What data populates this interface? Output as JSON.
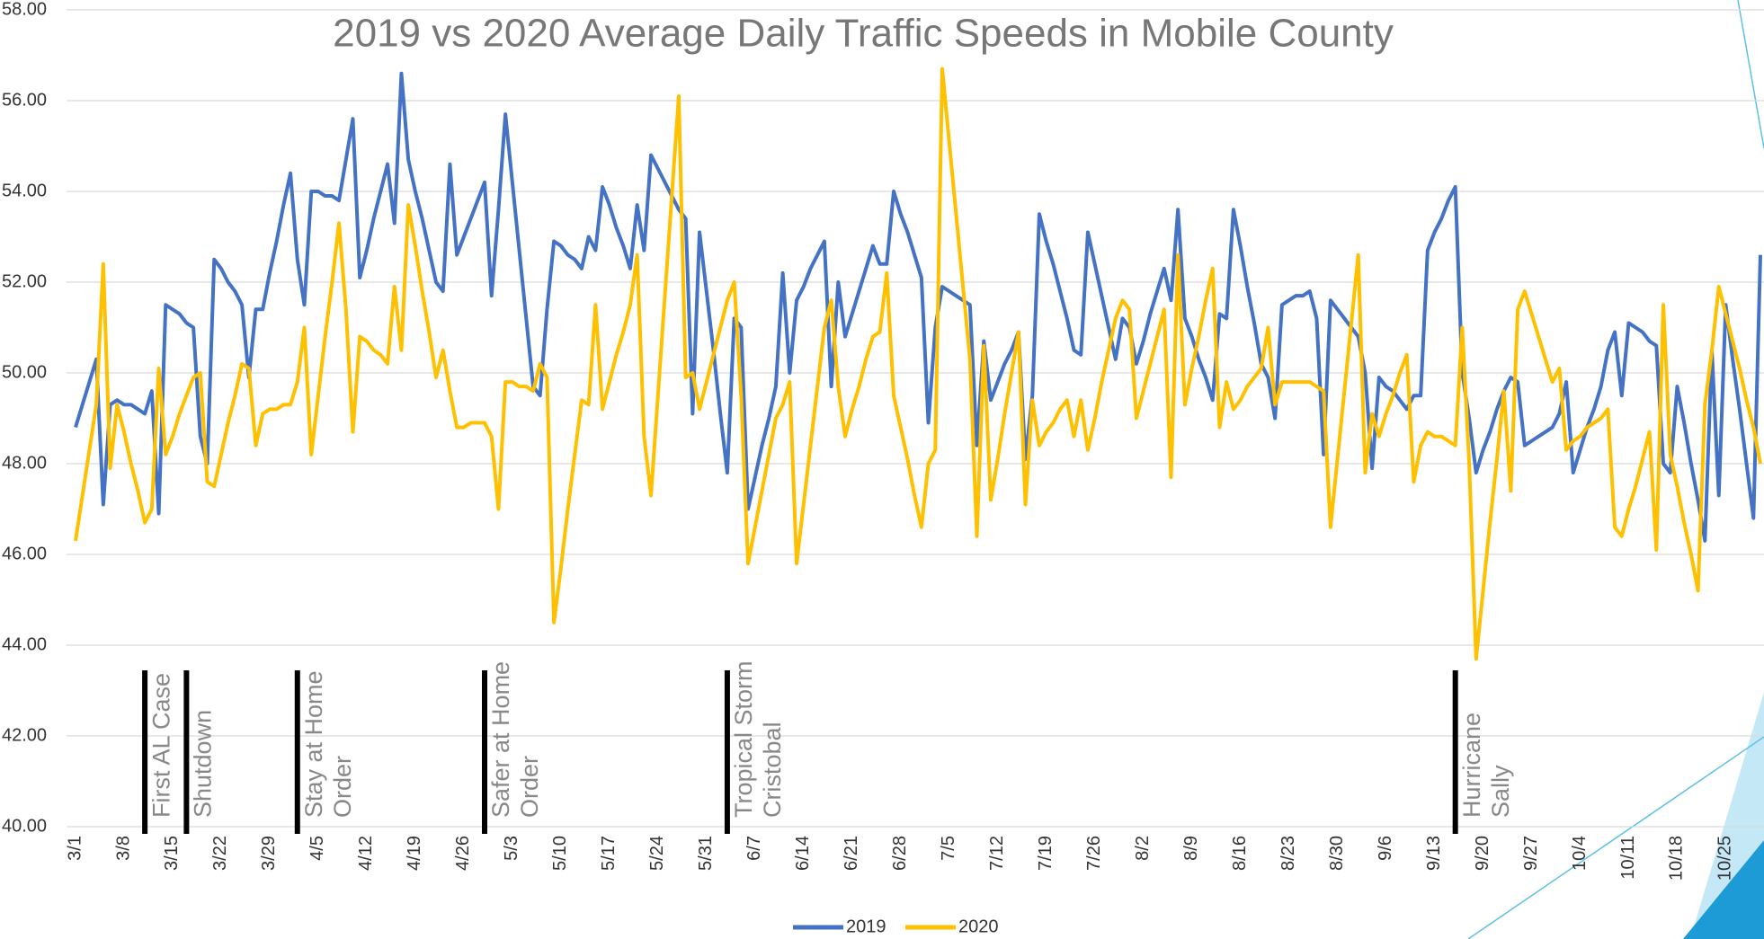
{
  "chart_data": {
    "type": "line",
    "title": "2019 vs 2020 Average Daily Traffic Speeds in Mobile County",
    "categories": [
      "3/1",
      "3/2",
      "3/3",
      "3/4",
      "3/5",
      "3/6",
      "3/7",
      "3/8",
      "3/9",
      "3/10",
      "3/11",
      "3/12",
      "3/13",
      "3/14",
      "3/15",
      "3/16",
      "3/17",
      "3/18",
      "3/19",
      "3/20",
      "3/21",
      "3/22",
      "3/23",
      "3/24",
      "3/25",
      "3/26",
      "3/27",
      "3/28",
      "3/29",
      "3/30",
      "3/31",
      "4/1",
      "4/2",
      "4/3",
      "4/4",
      "4/5",
      "4/6",
      "4/7",
      "4/8",
      "4/9",
      "4/10",
      "4/11",
      "4/12",
      "4/13",
      "4/14",
      "4/15",
      "4/16",
      "4/17",
      "4/18",
      "4/19",
      "4/20",
      "4/21",
      "4/22",
      "4/23",
      "4/24",
      "4/25",
      "4/26",
      "4/27",
      "4/28",
      "4/29",
      "4/30",
      "5/1",
      "5/2",
      "5/3",
      "5/4",
      "5/5",
      "5/6",
      "5/7",
      "5/8",
      "5/9",
      "5/10",
      "5/11",
      "5/12",
      "5/13",
      "5/14",
      "5/15",
      "5/16",
      "5/17",
      "5/18",
      "5/19",
      "5/20",
      "5/21",
      "5/22",
      "5/23",
      "5/24",
      "5/25",
      "5/26",
      "5/27",
      "5/28",
      "5/29",
      "5/30",
      "5/31",
      "6/1",
      "6/2",
      "6/3",
      "6/4",
      "6/5",
      "6/6",
      "6/7",
      "6/8",
      "6/9",
      "6/10",
      "6/11",
      "6/12",
      "6/13",
      "6/14",
      "6/15",
      "6/16",
      "6/17",
      "6/18",
      "6/19",
      "6/20",
      "6/21",
      "6/22",
      "6/23",
      "6/24",
      "6/25",
      "6/26",
      "6/27",
      "6/28",
      "6/29",
      "6/30",
      "7/1",
      "7/2",
      "7/3",
      "7/4",
      "7/5",
      "7/6",
      "7/7",
      "7/8",
      "7/9",
      "7/10",
      "7/11",
      "7/12",
      "7/13",
      "7/14",
      "7/15",
      "7/16",
      "7/17",
      "7/18",
      "7/19",
      "7/20",
      "7/21",
      "7/22",
      "7/23",
      "7/24",
      "7/25",
      "7/26",
      "7/27",
      "7/28",
      "7/29",
      "7/30",
      "7/31",
      "8/1",
      "8/2",
      "8/3",
      "8/4",
      "8/5",
      "8/6",
      "8/7",
      "8/8",
      "8/9",
      "8/10",
      "8/11",
      "8/12",
      "8/13",
      "8/14",
      "8/15",
      "8/16",
      "8/17",
      "8/18",
      "8/19",
      "8/20",
      "8/21",
      "8/22",
      "8/23",
      "8/24",
      "8/25",
      "8/26",
      "8/27",
      "8/28",
      "8/29",
      "8/30",
      "8/31",
      "9/1",
      "9/2",
      "9/3",
      "9/4",
      "9/5",
      "9/6",
      "9/7",
      "9/8",
      "9/9",
      "9/10",
      "9/11",
      "9/12",
      "9/13",
      "9/14",
      "9/15",
      "9/16",
      "9/17",
      "9/18",
      "9/19",
      "9/20",
      "9/21",
      "9/22",
      "9/23",
      "9/24",
      "9/25",
      "9/26",
      "9/27",
      "9/28",
      "9/29",
      "9/30",
      "10/1",
      "10/2",
      "10/3",
      "10/4",
      "10/5",
      "10/6",
      "10/7",
      "10/8",
      "10/9",
      "10/10",
      "10/11",
      "10/12",
      "10/13",
      "10/14",
      "10/15",
      "10/16",
      "10/17",
      "10/18",
      "10/19",
      "10/20",
      "10/21",
      "10/22",
      "10/23",
      "10/24",
      "10/25",
      "10/26",
      "10/27",
      "10/28",
      "10/29",
      "10/30"
    ],
    "series": [
      {
        "name": "2019",
        "color": "#4472c4",
        "values": [
          48.8,
          49.3,
          49.8,
          50.3,
          47.1,
          49.3,
          49.4,
          49.3,
          49.3,
          49.2,
          49.1,
          49.6,
          46.9,
          51.5,
          51.4,
          51.3,
          51.1,
          51.0,
          48.6,
          48.0,
          52.5,
          52.3,
          52.0,
          51.8,
          51.5,
          49.9,
          51.4,
          51.4,
          52.2,
          52.9,
          53.7,
          54.4,
          52.5,
          51.5,
          54.0,
          54.0,
          53.9,
          53.9,
          53.8,
          54.7,
          55.6,
          52.1,
          52.7,
          53.4,
          54.0,
          54.6,
          53.3,
          56.6,
          54.7,
          54.0,
          53.4,
          52.7,
          52.0,
          51.8,
          54.6,
          52.6,
          53.0,
          53.4,
          53.8,
          54.2,
          51.7,
          53.6,
          55.7,
          54.2,
          52.7,
          51.2,
          49.7,
          49.5,
          51.4,
          52.9,
          52.8,
          52.6,
          52.5,
          52.3,
          53.0,
          52.7,
          54.1,
          53.7,
          53.2,
          52.8,
          52.3,
          53.7,
          52.7,
          54.8,
          54.5,
          54.2,
          53.9,
          53.6,
          53.4,
          49.1,
          53.1,
          51.8,
          50.5,
          49.1,
          47.8,
          51.2,
          51.0,
          47.0,
          47.7,
          48.4,
          49.0,
          49.7,
          52.2,
          50.0,
          51.6,
          51.9,
          52.3,
          52.6,
          52.9,
          49.7,
          52.0,
          50.8,
          51.3,
          51.8,
          52.3,
          52.8,
          52.4,
          52.4,
          54.0,
          53.5,
          53.1,
          52.6,
          52.1,
          48.9,
          51.0,
          51.9,
          51.8,
          51.7,
          51.6,
          51.5,
          48.4,
          50.7,
          49.4,
          49.8,
          50.2,
          50.5,
          50.9,
          48.1,
          49.5,
          53.5,
          52.9,
          52.4,
          51.8,
          51.2,
          50.5,
          50.4,
          53.1,
          52.4,
          51.7,
          51.0,
          50.3,
          51.2,
          51.0,
          50.2,
          50.7,
          51.3,
          51.8,
          52.3,
          51.6,
          53.6,
          51.2,
          50.8,
          50.3,
          49.9,
          49.4,
          51.3,
          51.2,
          53.6,
          52.8,
          51.9,
          51.1,
          50.2,
          49.9,
          49.0,
          51.5,
          51.6,
          51.7,
          51.7,
          51.8,
          51.2,
          48.2,
          51.6,
          51.4,
          51.2,
          51.0,
          50.8,
          50.0,
          47.9,
          49.9,
          49.7,
          49.6,
          49.4,
          49.2,
          49.5,
          49.5,
          52.7,
          53.1,
          53.4,
          53.8,
          54.1,
          50.0,
          49.0,
          47.8,
          48.3,
          48.7,
          49.2,
          49.6,
          49.9,
          49.8,
          48.4,
          48.5,
          48.6,
          48.7,
          48.8,
          49.1,
          49.8,
          47.8,
          48.3,
          48.8,
          49.2,
          49.7,
          50.5,
          50.9,
          49.5,
          51.1,
          51.0,
          50.9,
          50.7,
          50.6,
          48.0,
          47.8,
          49.7,
          48.9,
          48.0,
          47.2,
          46.3,
          50.5,
          47.3,
          51.5,
          50.3,
          49.2,
          48.0,
          46.8,
          52.6
        ]
      },
      {
        "name": "2020",
        "color": "#ffc000",
        "values": [
          46.3,
          47.3,
          48.3,
          49.3,
          52.4,
          47.9,
          49.3,
          48.7,
          48.0,
          47.4,
          46.7,
          47.0,
          50.1,
          48.2,
          48.6,
          49.1,
          49.5,
          49.9,
          50.0,
          47.6,
          47.5,
          48.2,
          48.9,
          49.5,
          50.2,
          50.1,
          48.4,
          49.1,
          49.2,
          49.2,
          49.3,
          49.3,
          49.8,
          51.0,
          48.2,
          49.5,
          50.8,
          52.0,
          53.3,
          51.4,
          48.7,
          50.8,
          50.7,
          50.5,
          50.4,
          50.2,
          51.9,
          50.5,
          53.7,
          52.8,
          51.8,
          50.9,
          49.9,
          50.5,
          49.6,
          48.8,
          48.8,
          48.9,
          48.9,
          48.9,
          48.6,
          47.0,
          49.8,
          49.8,
          49.7,
          49.7,
          49.6,
          50.2,
          49.9,
          44.5,
          45.7,
          47.0,
          48.2,
          49.4,
          49.3,
          51.5,
          49.2,
          49.8,
          50.4,
          50.9,
          51.5,
          52.6,
          48.6,
          47.3,
          49.5,
          51.7,
          53.9,
          56.1,
          49.9,
          50.0,
          49.2,
          49.8,
          50.4,
          51.0,
          51.6,
          52.0,
          49.5,
          45.8,
          46.6,
          47.4,
          48.2,
          49.0,
          49.3,
          49.8,
          45.8,
          47.1,
          48.4,
          49.7,
          51.0,
          51.6,
          49.7,
          48.6,
          49.2,
          49.7,
          50.3,
          50.8,
          50.9,
          52.2,
          49.5,
          48.8,
          48.1,
          47.3,
          46.6,
          48.0,
          48.3,
          56.7,
          55.1,
          53.5,
          51.9,
          50.3,
          46.4,
          50.6,
          47.2,
          48.1,
          49.1,
          50.0,
          50.9,
          47.1,
          49.4,
          48.4,
          48.7,
          48.9,
          49.2,
          49.4,
          48.6,
          49.4,
          48.3,
          49.0,
          49.8,
          50.5,
          51.2,
          51.6,
          51.4,
          49.0,
          49.6,
          50.2,
          50.8,
          51.4,
          47.7,
          52.6,
          49.3,
          50.1,
          50.8,
          51.6,
          52.3,
          48.8,
          49.8,
          49.2,
          49.4,
          49.7,
          49.9,
          50.1,
          51.0,
          49.3,
          49.8,
          49.8,
          49.8,
          49.8,
          49.8,
          49.7,
          49.6,
          46.6,
          48.1,
          49.6,
          51.1,
          52.6,
          47.8,
          49.1,
          48.6,
          49.1,
          49.5,
          50.0,
          50.4,
          47.6,
          48.4,
          48.7,
          48.6,
          48.6,
          48.5,
          48.4,
          51.0,
          48.0,
          43.7,
          45.2,
          46.7,
          48.1,
          49.6,
          47.4,
          51.4,
          51.8,
          51.3,
          50.8,
          50.3,
          49.8,
          50.1,
          48.3,
          48.5,
          48.6,
          48.8,
          48.9,
          49.0,
          49.2,
          46.6,
          46.4,
          47.0,
          47.5,
          48.1,
          48.7,
          46.1,
          51.5,
          48.2,
          47.5,
          46.7,
          46.0,
          45.2,
          49.3,
          50.5,
          51.9,
          51.3,
          50.7,
          50.1,
          49.4,
          48.8,
          48.0
        ]
      }
    ],
    "ylim": [
      40,
      58
    ],
    "yticks": [
      {
        "value": 40,
        "label": "40.00"
      },
      {
        "value": 42,
        "label": "42.00"
      },
      {
        "value": 44,
        "label": "44.00"
      },
      {
        "value": 46,
        "label": "46.00"
      },
      {
        "value": 48,
        "label": "48.00"
      },
      {
        "value": 50,
        "label": "50.00"
      },
      {
        "value": 52,
        "label": "52.00"
      },
      {
        "value": 54,
        "label": "54.00"
      },
      {
        "value": 56,
        "label": "56.00"
      },
      {
        "value": 58,
        "label": "58.00"
      }
    ],
    "grid": true,
    "legend": "bottom",
    "annotations": [
      {
        "x": "3/11",
        "lines": [
          "First AL Case"
        ]
      },
      {
        "x": "3/17",
        "lines": [
          "Shutdown"
        ]
      },
      {
        "x": "4/2",
        "lines": [
          "Stay at Home",
          "Order"
        ]
      },
      {
        "x": "4/29",
        "lines": [
          "Safer at Home",
          "Order"
        ]
      },
      {
        "x": "6/3",
        "lines": [
          "Tropical Storm",
          "Cristobal"
        ]
      },
      {
        "x": "9/16",
        "lines": [
          "Hurricane",
          "Sally"
        ]
      }
    ]
  }
}
